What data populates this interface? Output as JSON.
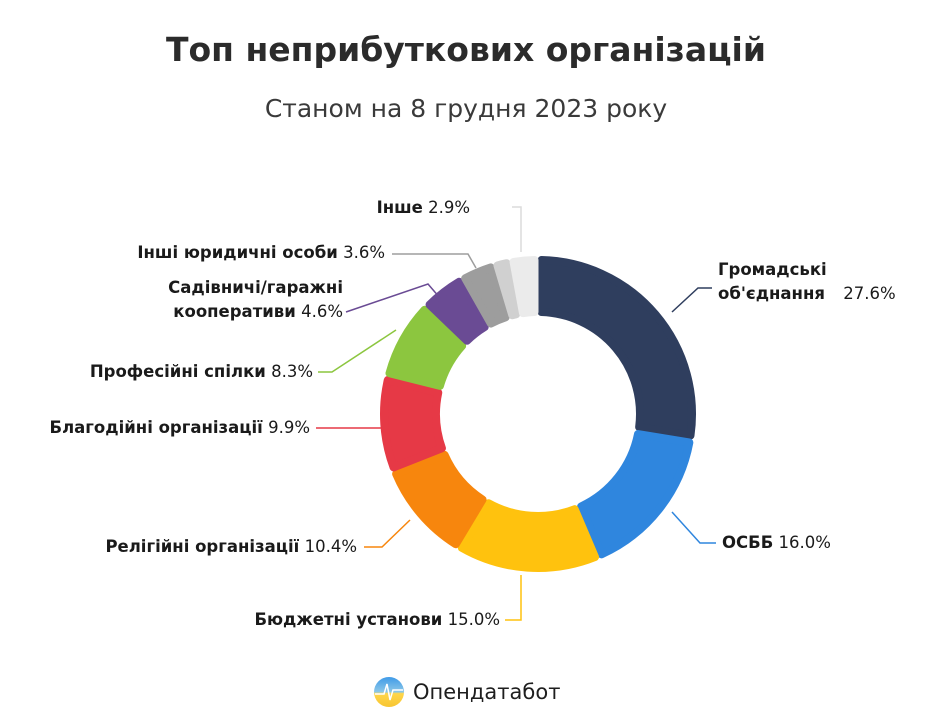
{
  "chart_data": {
    "type": "pie",
    "style": "donut",
    "title": "Топ неприбуткових організацій",
    "subtitle": "Станом на 8 грудня 2023 року",
    "unit": "%",
    "slices": [
      {
        "label": "Громадські об'єднання",
        "value": 27.6,
        "color": "#2f3e5e"
      },
      {
        "label": "ОСББ",
        "value": 16.0,
        "color": "#2f86de"
      },
      {
        "label": "Бюджетні установи",
        "value": 15.0,
        "color": "#ffc20e"
      },
      {
        "label": "Релігійні організації",
        "value": 10.4,
        "color": "#f7860d"
      },
      {
        "label": "Благодійні організації",
        "value": 9.9,
        "color": "#e63946"
      },
      {
        "label": "Професійні спілки",
        "value": 8.3,
        "color": "#8cc63f"
      },
      {
        "label": "Садівничі/гаражні кооперативи",
        "value": 4.6,
        "color": "#6a4b94"
      },
      {
        "label": "Інші юридичні особи",
        "value": 3.6,
        "color": "#9d9d9d"
      },
      {
        "label": "",
        "value": 1.7,
        "color": "#d0d0d0"
      },
      {
        "label": "Інше",
        "value": 2.9,
        "color": "#ebebeb"
      }
    ],
    "direction": "clockwise",
    "start": "top"
  },
  "brand": {
    "name": "Опендатабот"
  }
}
